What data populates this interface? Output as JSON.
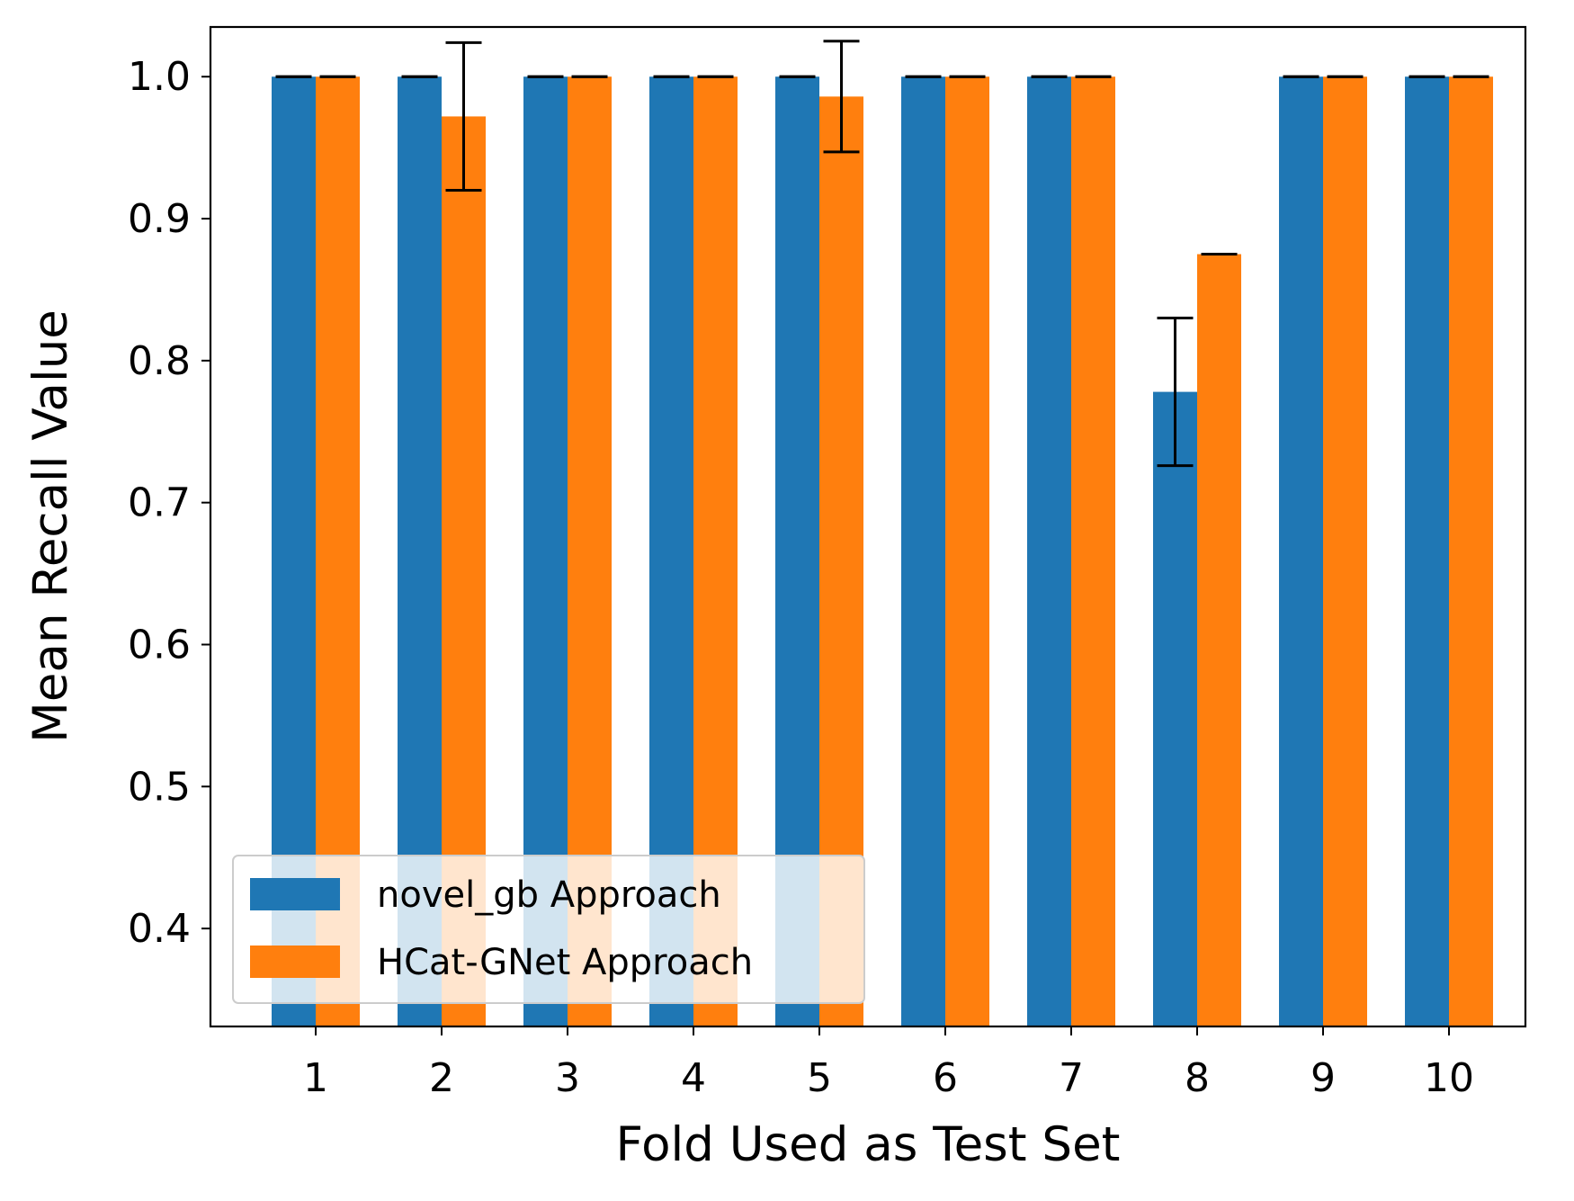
{
  "chart_data": {
    "type": "bar",
    "title": "",
    "xlabel": "Fold Used as Test Set",
    "ylabel": "Mean Recall Value",
    "categories": [
      "1",
      "2",
      "3",
      "4",
      "5",
      "6",
      "7",
      "8",
      "9",
      "10"
    ],
    "ylim": [
      0.331,
      1.035
    ],
    "yticks": [
      "0.4",
      "0.5",
      "0.6",
      "0.7",
      "0.8",
      "0.9",
      "1.0"
    ],
    "grid": false,
    "legend_position": "lower-left",
    "series": [
      {
        "name": "novel_gb Approach",
        "color": "#1f77b4",
        "values": [
          1.0,
          1.0,
          1.0,
          1.0,
          1.0,
          1.0,
          1.0,
          0.778,
          1.0,
          1.0
        ],
        "errors": [
          0,
          0,
          0,
          0,
          0,
          0,
          0,
          0.052,
          0,
          0
        ]
      },
      {
        "name": "HCat-GNet Approach",
        "color": "#ff7f0e",
        "values": [
          1.0,
          0.972,
          1.0,
          1.0,
          0.986,
          1.0,
          1.0,
          0.875,
          1.0,
          1.0
        ],
        "errors": [
          0,
          0.052,
          0,
          0,
          0.039,
          0,
          0,
          0,
          0,
          0
        ]
      }
    ]
  }
}
